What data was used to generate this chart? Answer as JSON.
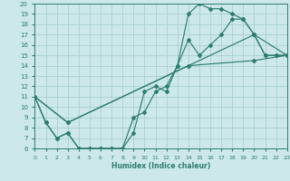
{
  "xlabel": "Humidex (Indice chaleur)",
  "bg_color": "#cce8e8",
  "line_color": "#2e7d6e",
  "grid_color": "#aacfcf",
  "xlim": [
    0,
    23
  ],
  "ylim": [
    6,
    20
  ],
  "xticks": [
    0,
    1,
    2,
    3,
    4,
    5,
    6,
    7,
    8,
    9,
    10,
    11,
    12,
    13,
    14,
    15,
    16,
    17,
    18,
    19,
    20,
    21,
    22,
    23
  ],
  "yticks": [
    6,
    7,
    8,
    9,
    10,
    11,
    12,
    13,
    14,
    15,
    16,
    17,
    18,
    19,
    20
  ],
  "lines": [
    {
      "x": [
        0,
        1,
        2,
        3,
        4,
        5,
        6,
        7,
        8,
        9,
        10,
        11,
        12,
        13,
        14,
        15,
        16,
        17,
        18,
        19,
        20,
        21,
        22,
        23
      ],
      "y": [
        11,
        8.5,
        7,
        7.5,
        6,
        6,
        6,
        6,
        6,
        7.5,
        11.5,
        12,
        11.5,
        14,
        19,
        20,
        19.5,
        19.5,
        19,
        18.5,
        17,
        15,
        15,
        15
      ]
    },
    {
      "x": [
        0,
        1,
        2,
        3,
        4,
        5,
        6,
        7,
        8,
        9,
        10,
        11,
        12,
        13,
        14,
        15,
        16,
        17,
        18,
        19,
        20,
        21,
        22,
        23
      ],
      "y": [
        11,
        8.5,
        7,
        7.5,
        6,
        6,
        6,
        6,
        6,
        9,
        9.5,
        11.5,
        12,
        14,
        16.5,
        15,
        16,
        17,
        18.5,
        18.5,
        17,
        15,
        15,
        15
      ]
    },
    {
      "x": [
        0,
        3,
        14,
        20,
        23
      ],
      "y": [
        11,
        8.5,
        14,
        17,
        15
      ]
    },
    {
      "x": [
        0,
        3,
        14,
        20,
        23
      ],
      "y": [
        11,
        8.5,
        14,
        14.5,
        15
      ]
    }
  ]
}
